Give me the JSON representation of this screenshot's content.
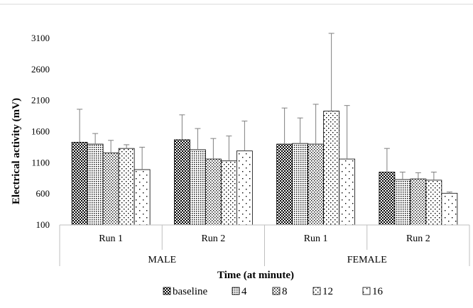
{
  "chart_data": {
    "type": "bar",
    "title": "",
    "xlabel": "Time (at minute)",
    "ylabel": "Electrical activity (mV)",
    "ylim": [
      100,
      3100
    ],
    "yticks": [
      100,
      600,
      1100,
      1600,
      2100,
      2600,
      3100
    ],
    "grid": false,
    "legend_position": "bottom",
    "groups": [
      {
        "name": "MALE",
        "categories": [
          "Run 1",
          "Run 2"
        ]
      },
      {
        "name": "FEMALE",
        "categories": [
          "Run 1",
          "Run 2"
        ]
      }
    ],
    "categories": [
      "Run 1",
      "Run 2",
      "Run 1",
      "Run 2"
    ],
    "series": [
      {
        "name": "baseline",
        "pattern": "checker",
        "values": [
          1430,
          1470,
          1400,
          950
        ],
        "error": [
          530,
          400,
          580,
          380
        ]
      },
      {
        "name": "4",
        "pattern": "dense-dots",
        "values": [
          1400,
          1310,
          1410,
          830
        ],
        "error": [
          170,
          340,
          410,
          120
        ]
      },
      {
        "name": "8",
        "pattern": "medium-dots",
        "values": [
          1260,
          1160,
          1400,
          840
        ],
        "error": [
          200,
          330,
          640,
          100
        ]
      },
      {
        "name": "12",
        "pattern": "sparse-dots",
        "values": [
          1330,
          1130,
          1930,
          820
        ],
        "error": [
          60,
          400,
          1250,
          130
        ]
      },
      {
        "name": "16",
        "pattern": "very-sparse-dots",
        "values": [
          990,
          1290,
          1160,
          610
        ],
        "error": [
          360,
          480,
          860,
          20
        ]
      }
    ]
  }
}
